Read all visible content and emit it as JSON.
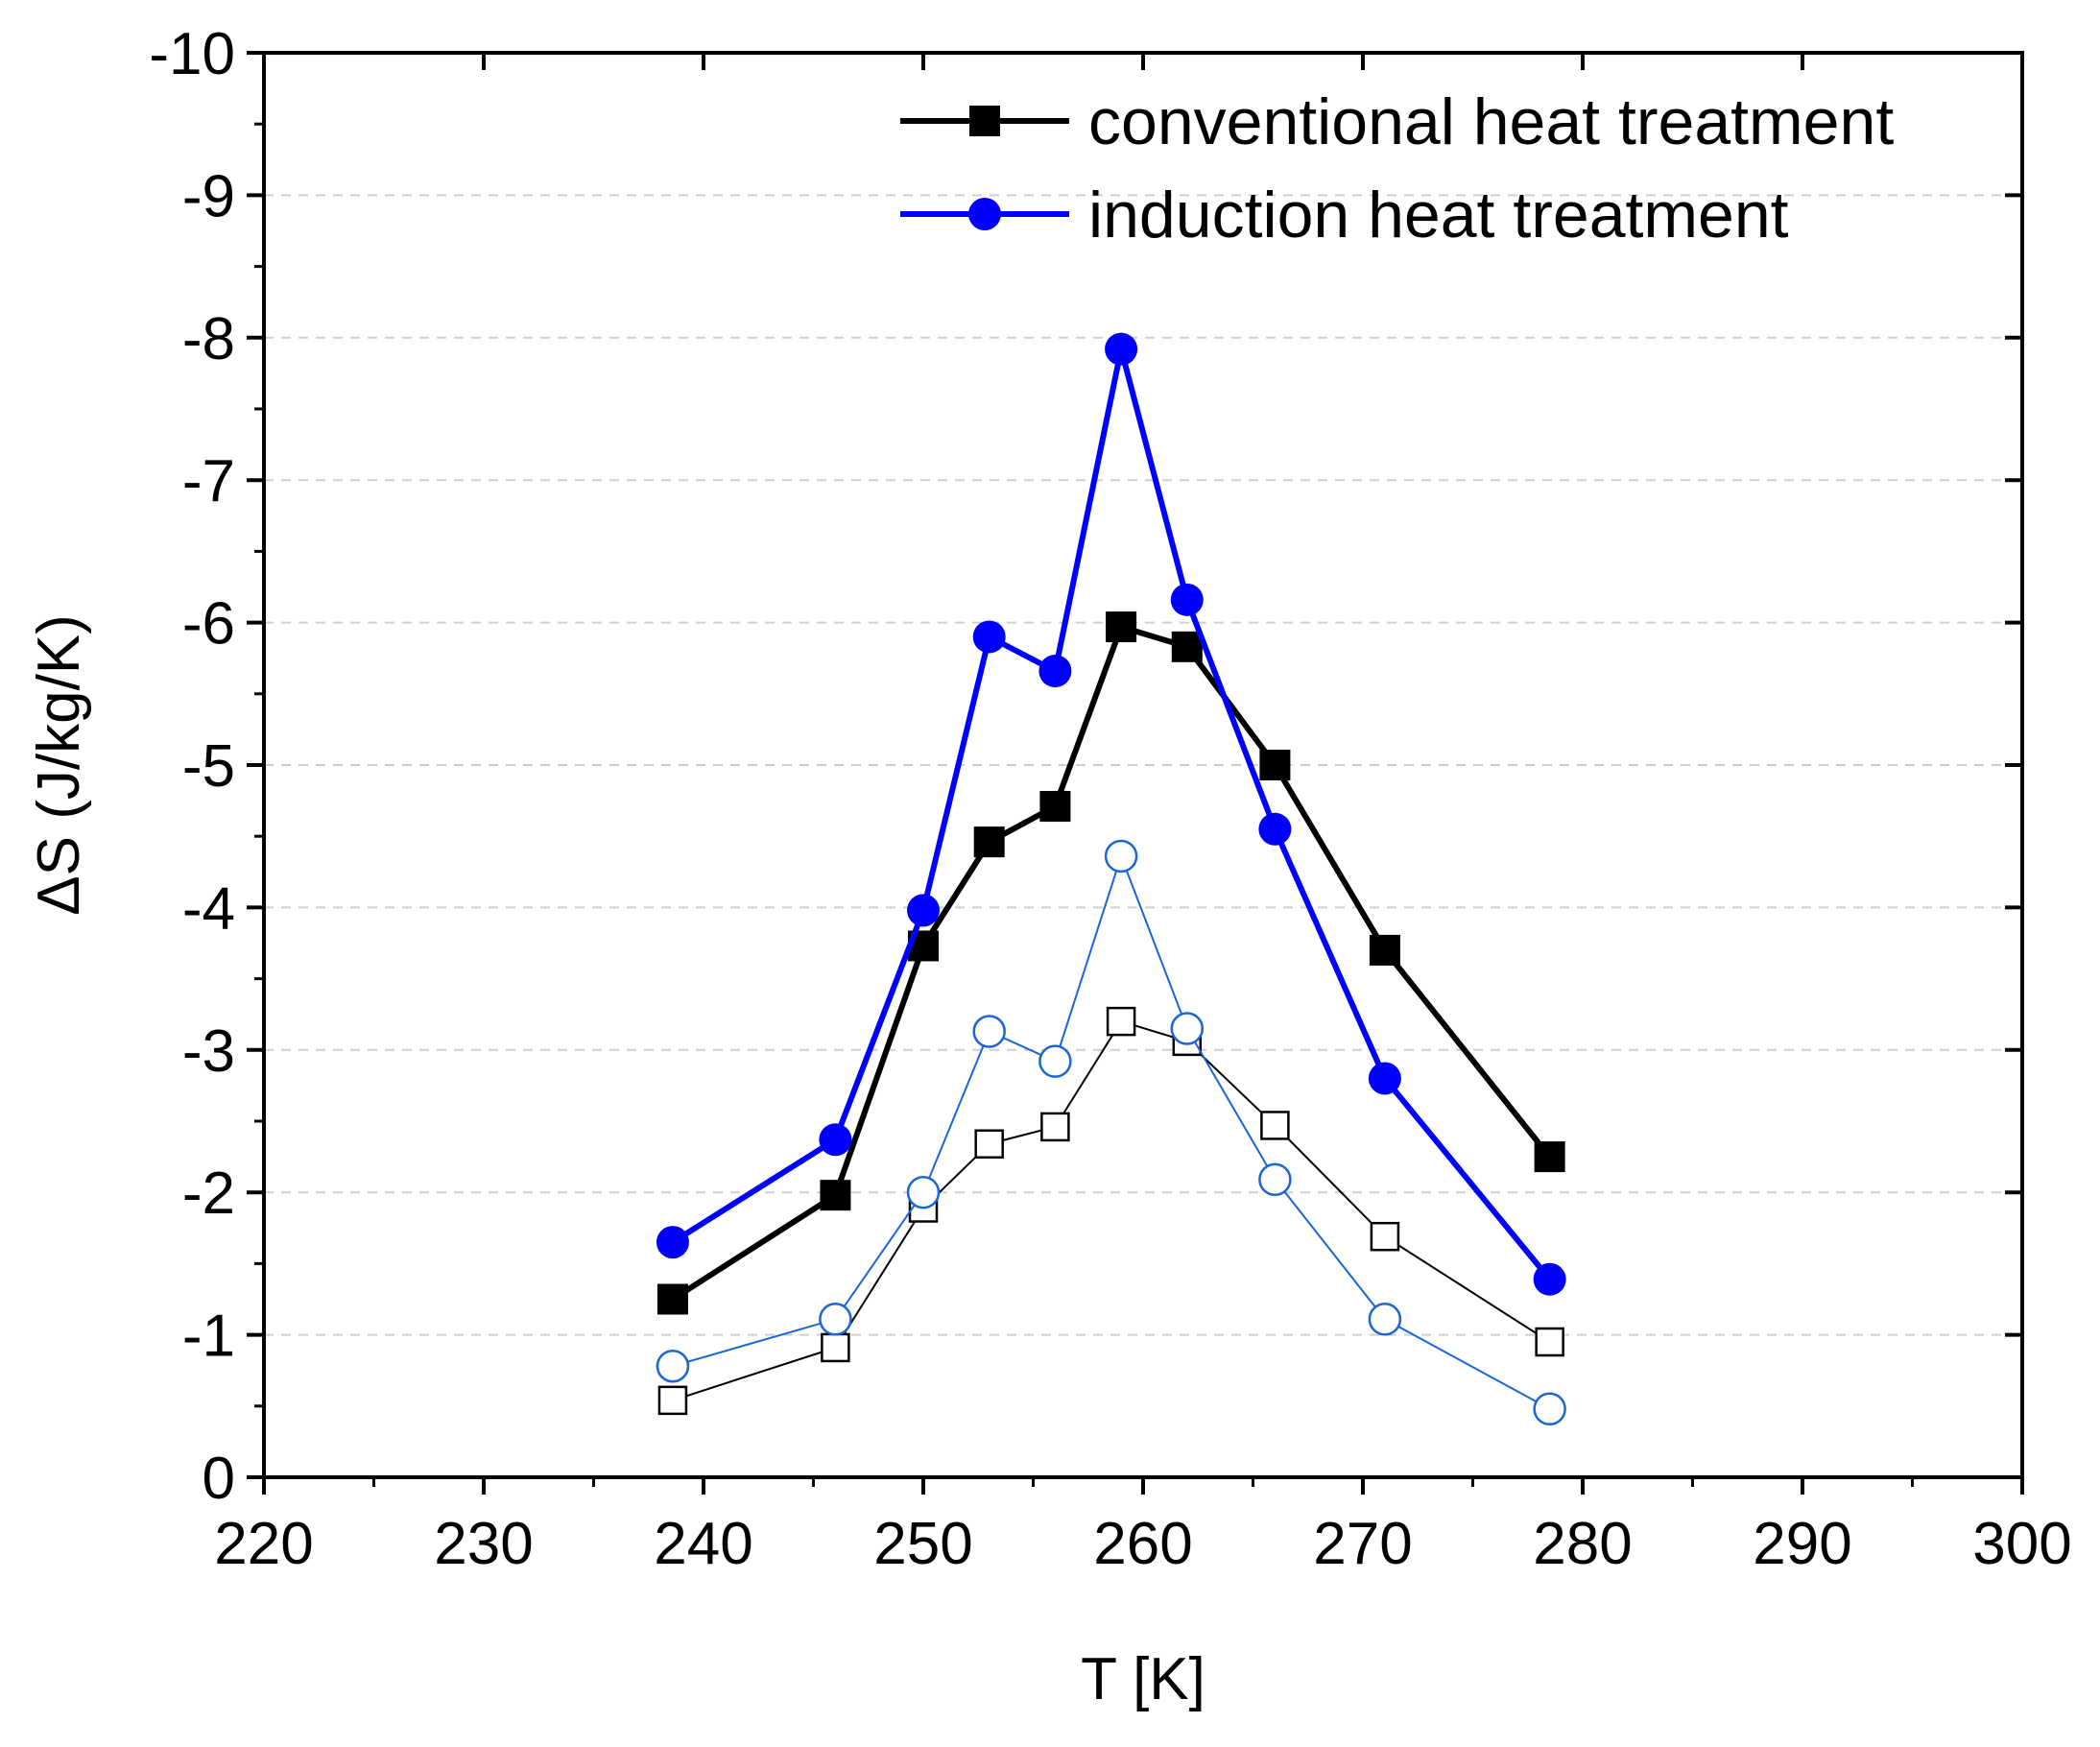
{
  "chart_data": {
    "type": "line",
    "xlabel": "T [K]",
    "ylabel": "ΔS (J/kg/K)",
    "xlim": [
      220,
      300
    ],
    "ylim": [
      0,
      -10
    ],
    "x_ticks": [
      220,
      230,
      240,
      250,
      260,
      270,
      280,
      290,
      300
    ],
    "y_ticks": [
      0,
      -1,
      -2,
      -3,
      -4,
      -5,
      -6,
      -7,
      -8,
      -9,
      -10
    ],
    "y_grid": true,
    "legend_position": "top-right",
    "series": [
      {
        "name": "conventional heat treatment",
        "show_in_legend": true,
        "color": "#000000",
        "marker": "square",
        "filled": true,
        "x": [
          238.6,
          246.0,
          250.0,
          253.0,
          256.0,
          259.0,
          262.0,
          266.0,
          271.0,
          278.5
        ],
        "y": [
          -1.25,
          -1.98,
          -3.73,
          -4.46,
          -4.71,
          -5.97,
          -5.83,
          -5.0,
          -3.7,
          -2.25
        ]
      },
      {
        "name": "induction heat treatment",
        "show_in_legend": true,
        "color": "#0000ff",
        "marker": "circle",
        "filled": true,
        "x": [
          238.6,
          246.0,
          250.0,
          253.0,
          256.0,
          259.0,
          262.0,
          266.0,
          271.0,
          278.5
        ],
        "y": [
          -1.65,
          -2.37,
          -3.98,
          -5.9,
          -5.66,
          -7.92,
          -6.16,
          -4.55,
          -2.8,
          -1.39
        ]
      },
      {
        "name": "conventional heat treatment (open)",
        "show_in_legend": false,
        "color": "#000000",
        "marker": "square",
        "filled": false,
        "x": [
          238.6,
          246.0,
          250.0,
          253.0,
          256.0,
          259.0,
          262.0,
          266.0,
          271.0,
          278.5
        ],
        "y": [
          -0.54,
          -0.91,
          -1.89,
          -2.34,
          -2.46,
          -3.2,
          -3.06,
          -2.47,
          -1.69,
          -0.95
        ]
      },
      {
        "name": "induction heat treatment (open)",
        "show_in_legend": false,
        "color": "#1a66d6",
        "marker": "circle",
        "filled": false,
        "x": [
          238.6,
          246.0,
          250.0,
          253.0,
          256.0,
          259.0,
          262.0,
          266.0,
          271.0,
          278.5
        ],
        "y": [
          -0.78,
          -1.11,
          -2.0,
          -3.13,
          -2.92,
          -4.36,
          -3.15,
          -2.09,
          -1.11,
          -0.48
        ]
      }
    ]
  }
}
